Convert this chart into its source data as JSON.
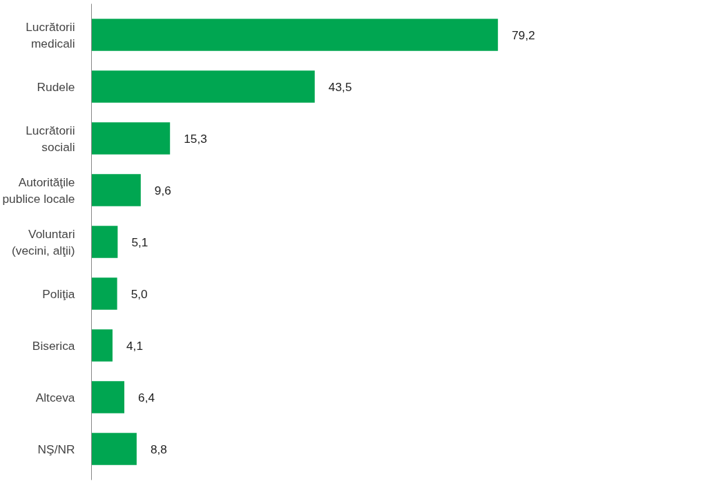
{
  "chart_data": {
    "type": "bar",
    "orientation": "horizontal",
    "categories": [
      "Lucrătorii medicali",
      "Rudele",
      "Lucrătorii sociali",
      "Autorităţile publice locale",
      "Voluntari (vecini, alţii)",
      "Poliţia",
      "Biserica",
      "Altceva",
      "NŞ/NR"
    ],
    "values": [
      79.2,
      43.5,
      15.3,
      9.6,
      5.1,
      5.0,
      4.1,
      6.4,
      8.8
    ],
    "value_labels": [
      "79,2",
      "43,5",
      "15,3",
      "9,6",
      "5,1",
      "5,0",
      "4,1",
      "6,4",
      "8,8"
    ],
    "color": "#00a651",
    "grid": false
  }
}
